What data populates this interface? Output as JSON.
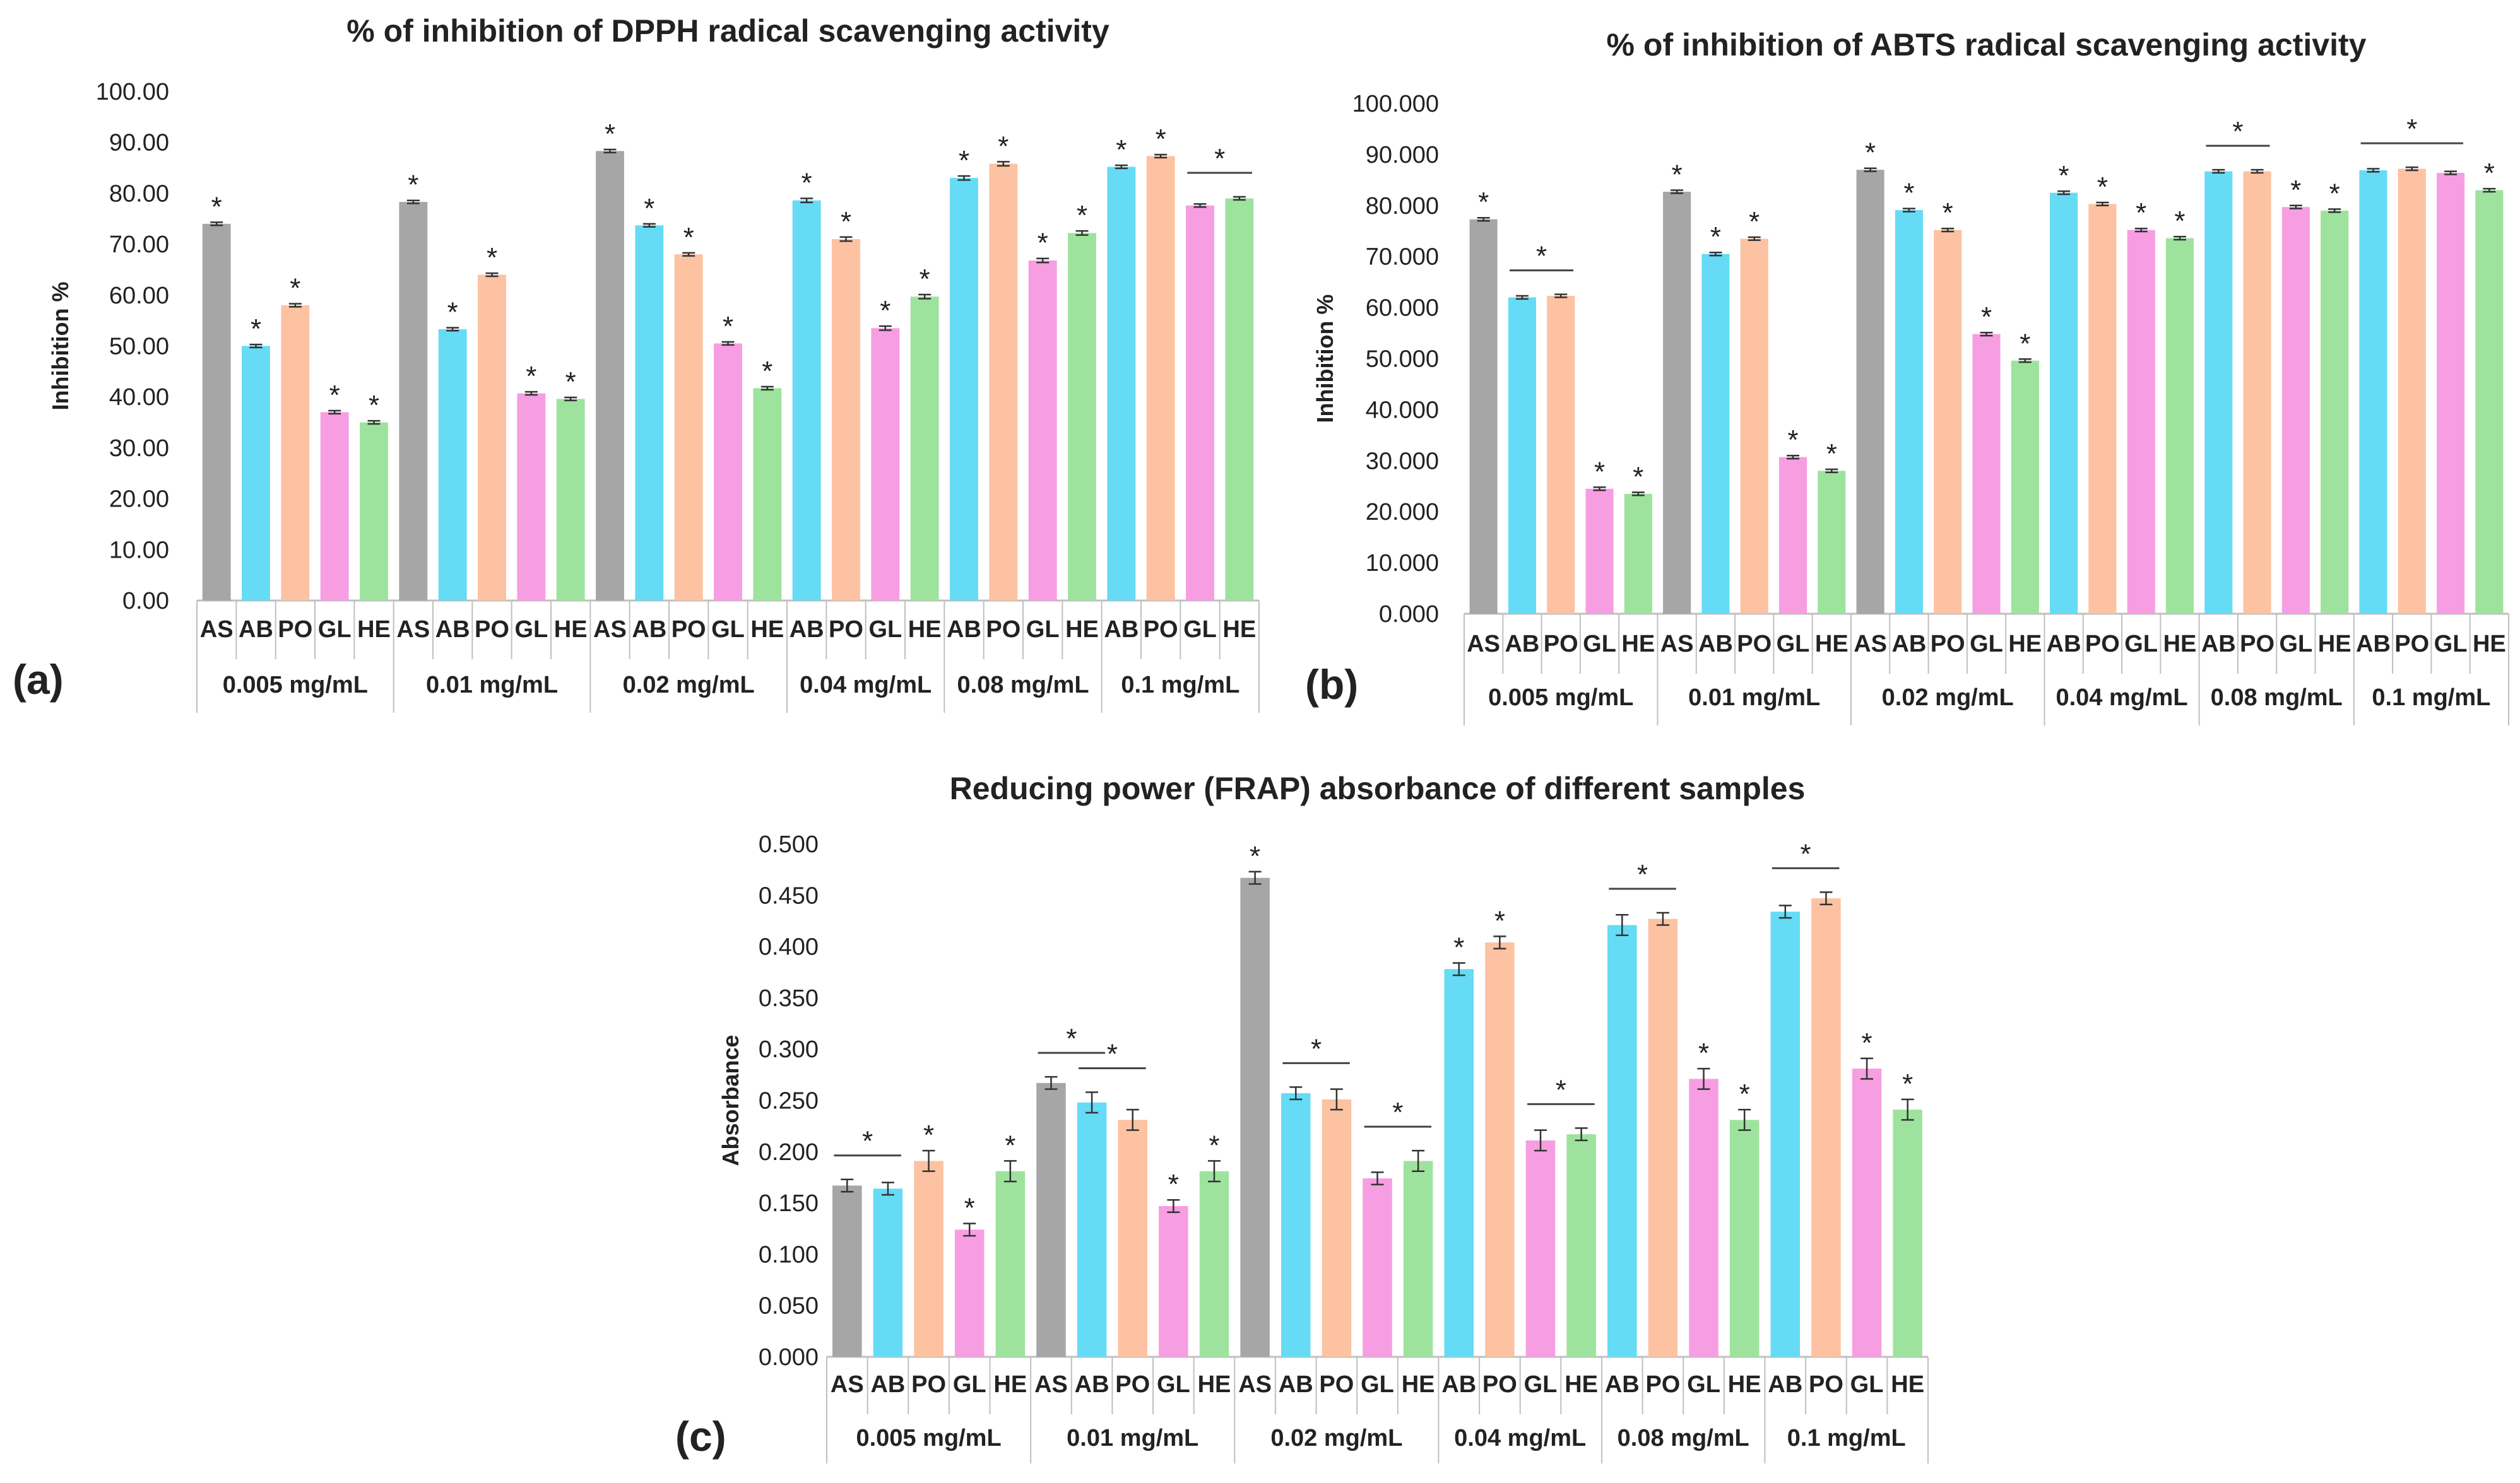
{
  "colors": {
    "AS": "#a6a6a6",
    "AB": "#66dbf5",
    "PO": "#fcc2a2",
    "GL": "#f79ee2",
    "HE": "#9ee39d",
    "axis": "#bfbfbf",
    "text": "#222222"
  },
  "chart_data": [
    {
      "type": "bar",
      "panel": "(a)",
      "title": "% of inhibition of DPPH radical scavenging activity",
      "ylabel": "Inhibition %",
      "ylim": [
        0,
        100
      ],
      "yticks": [
        "0.00",
        "10.00",
        "20.00",
        "30.00",
        "40.00",
        "50.00",
        "60.00",
        "70.00",
        "80.00",
        "90.00",
        "100.00"
      ],
      "groups": [
        {
          "label": "0.005 mg/mL",
          "bars": [
            {
              "cat": "AS",
              "value": 74.0,
              "err": 0.3,
              "star": true
            },
            {
              "cat": "AB",
              "value": 50.0,
              "err": 0.3,
              "star": true
            },
            {
              "cat": "PO",
              "value": 58.0,
              "err": 0.3,
              "star": true
            },
            {
              "cat": "GL",
              "value": 37.0,
              "err": 0.3,
              "star": true
            },
            {
              "cat": "HE",
              "value": 35.0,
              "err": 0.3,
              "star": true
            }
          ]
        },
        {
          "label": "0.01 mg/mL",
          "bars": [
            {
              "cat": "AS",
              "value": 78.3,
              "err": 0.3,
              "star": true
            },
            {
              "cat": "AB",
              "value": 53.3,
              "err": 0.3,
              "star": true
            },
            {
              "cat": "PO",
              "value": 64.0,
              "err": 0.3,
              "star": true
            },
            {
              "cat": "GL",
              "value": 40.7,
              "err": 0.3,
              "star": true
            },
            {
              "cat": "HE",
              "value": 39.6,
              "err": 0.3,
              "star": true
            }
          ]
        },
        {
          "label": "0.02 mg/mL",
          "bars": [
            {
              "cat": "AS",
              "value": 88.3,
              "err": 0.3,
              "star": true
            },
            {
              "cat": "AB",
              "value": 73.7,
              "err": 0.3,
              "star": true
            },
            {
              "cat": "PO",
              "value": 68.0,
              "err": 0.3,
              "star": true
            },
            {
              "cat": "GL",
              "value": 50.5,
              "err": 0.3,
              "star": true
            },
            {
              "cat": "HE",
              "value": 41.7,
              "err": 0.3,
              "star": true
            }
          ]
        },
        {
          "label": "0.04 mg/mL",
          "bars": [
            {
              "cat": "AB",
              "value": 78.6,
              "err": 0.4,
              "star": true
            },
            {
              "cat": "PO",
              "value": 71.0,
              "err": 0.4,
              "star": true
            },
            {
              "cat": "GL",
              "value": 53.5,
              "err": 0.4,
              "star": true
            },
            {
              "cat": "HE",
              "value": 59.7,
              "err": 0.4,
              "star": true
            }
          ]
        },
        {
          "label": "0.08 mg/mL",
          "bars": [
            {
              "cat": "AB",
              "value": 83.0,
              "err": 0.4,
              "star": true
            },
            {
              "cat": "PO",
              "value": 85.8,
              "err": 0.4,
              "star": true
            },
            {
              "cat": "GL",
              "value": 66.8,
              "err": 0.4,
              "star": true
            },
            {
              "cat": "HE",
              "value": 72.2,
              "err": 0.4,
              "star": true
            }
          ]
        },
        {
          "label": "0.1 mg/mL",
          "bars": [
            {
              "cat": "AB",
              "value": 85.2,
              "err": 0.3,
              "star": true
            },
            {
              "cat": "PO",
              "value": 87.3,
              "err": 0.3,
              "star": true
            },
            {
              "cat": "GL",
              "value": 77.6,
              "err": 0.3,
              "star": false
            },
            {
              "cat": "HE",
              "value": 79.0,
              "err": 0.3,
              "star": false
            }
          ]
        }
      ],
      "brackets": [
        {
          "group": 5,
          "from": 2,
          "to": 3,
          "label": "*"
        }
      ]
    },
    {
      "type": "bar",
      "panel": "(b)",
      "title": "% of inhibition of ABTS radical scavenging activity",
      "ylabel": "Inhibition %",
      "ylim": [
        0,
        100
      ],
      "yticks": [
        "0.000",
        "10.000",
        "20.000",
        "30.000",
        "40.000",
        "50.000",
        "60.000",
        "70.000",
        "80.000",
        "90.000",
        "100.000"
      ],
      "groups": [
        {
          "label": "0.005 mg/mL",
          "bars": [
            {
              "cat": "AS",
              "value": 77.3,
              "err": 0.3,
              "star": true
            },
            {
              "cat": "AB",
              "value": 62.0,
              "err": 0.3,
              "star": false
            },
            {
              "cat": "PO",
              "value": 62.3,
              "err": 0.3,
              "star": false
            },
            {
              "cat": "GL",
              "value": 24.5,
              "err": 0.3,
              "star": true
            },
            {
              "cat": "HE",
              "value": 23.5,
              "err": 0.3,
              "star": true
            }
          ]
        },
        {
          "label": "0.01 mg/mL",
          "bars": [
            {
              "cat": "AS",
              "value": 82.7,
              "err": 0.3,
              "star": true
            },
            {
              "cat": "AB",
              "value": 70.5,
              "err": 0.3,
              "star": true
            },
            {
              "cat": "PO",
              "value": 73.5,
              "err": 0.3,
              "star": true
            },
            {
              "cat": "GL",
              "value": 30.7,
              "err": 0.3,
              "star": true
            },
            {
              "cat": "HE",
              "value": 28.0,
              "err": 0.3,
              "star": true
            }
          ]
        },
        {
          "label": "0.02 mg/mL",
          "bars": [
            {
              "cat": "AS",
              "value": 87.0,
              "err": 0.3,
              "star": true
            },
            {
              "cat": "AB",
              "value": 79.1,
              "err": 0.3,
              "star": true
            },
            {
              "cat": "PO",
              "value": 75.2,
              "err": 0.3,
              "star": true
            },
            {
              "cat": "GL",
              "value": 54.8,
              "err": 0.3,
              "star": true
            },
            {
              "cat": "HE",
              "value": 49.6,
              "err": 0.3,
              "star": true
            }
          ]
        },
        {
          "label": "0.04 mg/mL",
          "bars": [
            {
              "cat": "AB",
              "value": 82.5,
              "err": 0.3,
              "star": true
            },
            {
              "cat": "PO",
              "value": 80.3,
              "err": 0.3,
              "star": true
            },
            {
              "cat": "GL",
              "value": 75.2,
              "err": 0.3,
              "star": true
            },
            {
              "cat": "HE",
              "value": 73.6,
              "err": 0.3,
              "star": true
            }
          ]
        },
        {
          "label": "0.08 mg/mL",
          "bars": [
            {
              "cat": "AB",
              "value": 86.7,
              "err": 0.3,
              "star": false
            },
            {
              "cat": "PO",
              "value": 86.7,
              "err": 0.3,
              "star": false
            },
            {
              "cat": "GL",
              "value": 79.7,
              "err": 0.3,
              "star": true
            },
            {
              "cat": "HE",
              "value": 79.0,
              "err": 0.3,
              "star": true
            }
          ]
        },
        {
          "label": "0.1 mg/mL",
          "bars": [
            {
              "cat": "AB",
              "value": 86.9,
              "err": 0.3,
              "star": false
            },
            {
              "cat": "PO",
              "value": 87.2,
              "err": 0.3,
              "star": false
            },
            {
              "cat": "GL",
              "value": 86.4,
              "err": 0.3,
              "star": false
            },
            {
              "cat": "HE",
              "value": 83.0,
              "err": 0.3,
              "star": true
            }
          ]
        }
      ],
      "brackets": [
        {
          "group": 0,
          "from": 1,
          "to": 2,
          "label": "*"
        },
        {
          "group": 4,
          "from": 0,
          "to": 1,
          "label": "*"
        },
        {
          "group": 5,
          "from": 0,
          "to": 2,
          "label": "*"
        }
      ]
    },
    {
      "type": "bar",
      "panel": "(c)",
      "title": "Reducing power (FRAP) absorbance of different samples",
      "ylabel": "Absorbance",
      "ylim": [
        0,
        0.5
      ],
      "yticks": [
        "0.000",
        "0.050",
        "0.100",
        "0.150",
        "0.200",
        "0.250",
        "0.300",
        "0.350",
        "0.400",
        "0.450",
        "0.500"
      ],
      "groups": [
        {
          "label": "0.005 mg/mL",
          "bars": [
            {
              "cat": "AS",
              "value": 0.167,
              "err": 0.006,
              "star": false
            },
            {
              "cat": "AB",
              "value": 0.164,
              "err": 0.006,
              "star": false
            },
            {
              "cat": "PO",
              "value": 0.191,
              "err": 0.01,
              "star": true
            },
            {
              "cat": "GL",
              "value": 0.124,
              "err": 0.006,
              "star": true
            },
            {
              "cat": "HE",
              "value": 0.181,
              "err": 0.01,
              "star": true
            }
          ]
        },
        {
          "label": "0.01 mg/mL",
          "bars": [
            {
              "cat": "AS",
              "value": 0.267,
              "err": 0.006,
              "star": false
            },
            {
              "cat": "AB",
              "value": 0.248,
              "err": 0.01,
              "star": false
            },
            {
              "cat": "PO",
              "value": 0.231,
              "err": 0.01,
              "star": false
            },
            {
              "cat": "GL",
              "value": 0.147,
              "err": 0.006,
              "star": true
            },
            {
              "cat": "HE",
              "value": 0.181,
              "err": 0.01,
              "star": true
            }
          ]
        },
        {
          "label": "0.02 mg/mL",
          "bars": [
            {
              "cat": "AS",
              "value": 0.467,
              "err": 0.006,
              "star": true
            },
            {
              "cat": "AB",
              "value": 0.257,
              "err": 0.006,
              "star": false
            },
            {
              "cat": "PO",
              "value": 0.251,
              "err": 0.01,
              "star": false
            },
            {
              "cat": "GL",
              "value": 0.174,
              "err": 0.006,
              "star": false
            },
            {
              "cat": "HE",
              "value": 0.191,
              "err": 0.01,
              "star": false
            }
          ]
        },
        {
          "label": "0.04 mg/mL",
          "bars": [
            {
              "cat": "AB",
              "value": 0.378,
              "err": 0.006,
              "star": true
            },
            {
              "cat": "PO",
              "value": 0.404,
              "err": 0.006,
              "star": true
            },
            {
              "cat": "GL",
              "value": 0.211,
              "err": 0.01,
              "star": false
            },
            {
              "cat": "HE",
              "value": 0.217,
              "err": 0.006,
              "star": false
            }
          ]
        },
        {
          "label": "0.08 mg/mL",
          "bars": [
            {
              "cat": "AB",
              "value": 0.421,
              "err": 0.01,
              "star": false
            },
            {
              "cat": "PO",
              "value": 0.427,
              "err": 0.006,
              "star": false
            },
            {
              "cat": "GL",
              "value": 0.271,
              "err": 0.01,
              "star": true
            },
            {
              "cat": "HE",
              "value": 0.231,
              "err": 0.01,
              "star": true
            }
          ]
        },
        {
          "label": "0.1 mg/mL",
          "bars": [
            {
              "cat": "AB",
              "value": 0.434,
              "err": 0.006,
              "star": false
            },
            {
              "cat": "PO",
              "value": 0.447,
              "err": 0.006,
              "star": false
            },
            {
              "cat": "GL",
              "value": 0.281,
              "err": 0.01,
              "star": true
            },
            {
              "cat": "HE",
              "value": 0.241,
              "err": 0.01,
              "star": true
            }
          ]
        }
      ],
      "brackets": [
        {
          "group": 0,
          "from": 0,
          "to": 1,
          "label": "*"
        },
        {
          "group": 1,
          "from": 0,
          "to": 1,
          "label": "*"
        },
        {
          "group": 1,
          "from": 1,
          "to": 2,
          "label": "*"
        },
        {
          "group": 2,
          "from": 1,
          "to": 2,
          "label": "*"
        },
        {
          "group": 2,
          "from": 3,
          "to": 4,
          "label": "*"
        },
        {
          "group": 3,
          "from": 2,
          "to": 3,
          "label": "*"
        },
        {
          "group": 4,
          "from": 0,
          "to": 1,
          "label": "*"
        },
        {
          "group": 5,
          "from": 0,
          "to": 1,
          "label": "*"
        }
      ]
    }
  ]
}
